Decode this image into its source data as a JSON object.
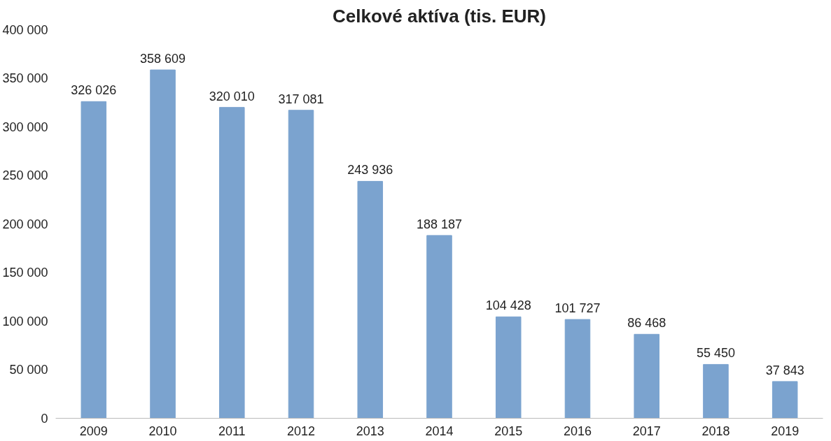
{
  "chart_data": {
    "type": "bar",
    "title": "Celkové aktíva (tis. EUR)",
    "categories": [
      "2009",
      "2010",
      "2011",
      "2012",
      "2013",
      "2014",
      "2015",
      "2016",
      "2017",
      "2018",
      "2019"
    ],
    "values": [
      326026,
      358609,
      320010,
      317081,
      243936,
      188187,
      104428,
      101727,
      86468,
      55450,
      37843
    ],
    "value_labels": [
      "326 026",
      "358 609",
      "320 010",
      "317 081",
      "243 936",
      "188 187",
      "104 428",
      "101 727",
      "86 468",
      "55 450",
      "37 843"
    ],
    "color": "#7ba3cf",
    "ylim": [
      0,
      400000
    ],
    "yticks": [
      {
        "value": 0,
        "label": "0"
      },
      {
        "value": 50000,
        "label": "50 000"
      },
      {
        "value": 100000,
        "label": "100 000"
      },
      {
        "value": 150000,
        "label": "150 000"
      },
      {
        "value": 200000,
        "label": "200 000"
      },
      {
        "value": 250000,
        "label": "250 000"
      },
      {
        "value": 300000,
        "label": "300 000"
      },
      {
        "value": 350000,
        "label": "350 000"
      },
      {
        "value": 400000,
        "label": "400 000"
      }
    ],
    "grid": false
  }
}
